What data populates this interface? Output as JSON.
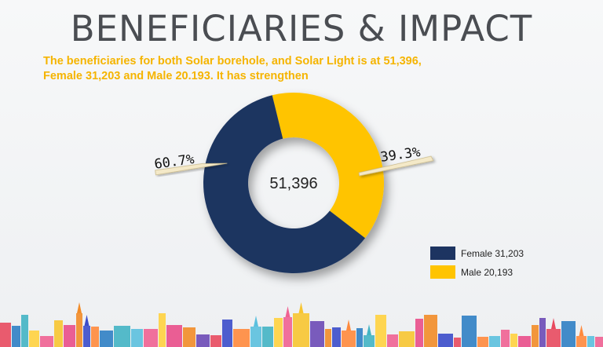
{
  "page": {
    "title": "BENEFICIARIES & IMPACT",
    "subtitle_line1": "The beneficiaries for both Solar borehole, and Solar Light is  at 51,396,",
    "subtitle_line2": "Female 31,203 and Male 20.193. It has strengthen"
  },
  "chart_data": {
    "type": "pie",
    "variant": "donut",
    "center_label": "51,396",
    "slices": [
      {
        "name": "Female 31,203",
        "value": 31203,
        "percent_label": "60.7%",
        "color": "#1d3461"
      },
      {
        "name": "Male 20,193",
        "value": 20193,
        "percent_label": "39.3%",
        "color": "#ffc400"
      }
    ],
    "legend_position": "bottom-right"
  },
  "colors": {
    "title": "#4a4d52",
    "subtitle": "#f5b400",
    "female": "#1d3461",
    "male": "#ffc400"
  }
}
